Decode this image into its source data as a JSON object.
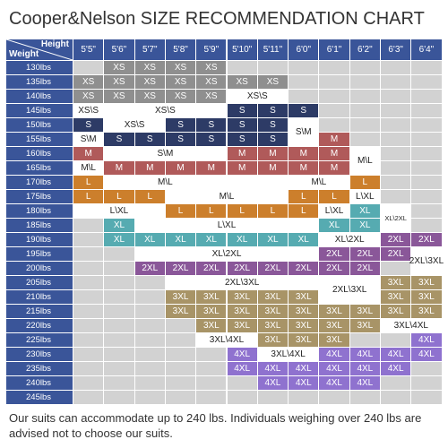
{
  "title": "Cooper&Nelson SIZE RECOMMENDATION CHART",
  "corner": {
    "height_label": "Height",
    "weight_label": "Weight"
  },
  "heights": [
    "5'5\"",
    "5'6\"",
    "5'7\"",
    "5'8\"",
    "5'9\"",
    "5'10\"",
    "5'11\"",
    "6'0\"",
    "6'1\"",
    "6'2\"",
    "6'3\"",
    "6'4\""
  ],
  "weights": [
    "130lbs",
    "135lbs",
    "140lbs",
    "145lbs",
    "150lbs",
    "155lbs",
    "160lbs",
    "165lbs",
    "170lbs",
    "175lbs",
    "180lbs",
    "185lbs",
    "190lbs",
    "195lbs",
    "200lbs",
    "205lbs",
    "210lbs",
    "215lbs",
    "220lbs",
    "225lbs",
    "230lbs",
    "235lbs",
    "240lbs",
    "245lbs"
  ],
  "colors": {
    "XS": "#8f8f8f",
    "S": "#2d3b66",
    "M": "#b05a5a",
    "L": "#cc7f2c",
    "XL": "#56abb1",
    "2XL": "#8a5799",
    "3XL": "#a89467",
    "4XL": "#8f72cf",
    "empty": "#d2d2d2",
    "white": "#ffffff",
    "header": "#3a5599"
  },
  "sizes": [
    [
      "",
      "XS",
      "XS",
      "XS",
      "XS",
      "",
      "",
      "",
      "",
      "",
      "",
      ""
    ],
    [
      "XS",
      "XS",
      "XS",
      "XS",
      "XS",
      "XS",
      "XS",
      "",
      "",
      "",
      "",
      ""
    ],
    [
      "XS",
      "XS",
      "XS",
      "XS",
      "XS",
      "",
      "",
      "",
      "",
      "",
      "",
      ""
    ],
    [
      "",
      "",
      "",
      "",
      "",
      "S",
      "S",
      "S",
      "",
      "",
      "",
      ""
    ],
    [
      "S",
      "",
      "",
      "S",
      "S",
      "S",
      "S",
      "",
      "",
      "",
      "",
      ""
    ],
    [
      "",
      "S",
      "S",
      "S",
      "S",
      "S",
      "S",
      "",
      "M",
      "",
      "",
      ""
    ],
    [
      "M",
      "",
      "",
      "",
      "",
      "M",
      "M",
      "M",
      "M",
      "",
      "",
      ""
    ],
    [
      "",
      "M",
      "M",
      "M",
      "M",
      "M",
      "M",
      "M",
      "M",
      "",
      "",
      ""
    ],
    [
      "L",
      "",
      "",
      "",
      "",
      "",
      "",
      "",
      "",
      "L",
      "",
      ""
    ],
    [
      "L",
      "L",
      "L",
      "",
      "",
      "",
      "",
      "L",
      "L",
      "",
      "",
      ""
    ],
    [
      "",
      "",
      "",
      "L",
      "L",
      "L",
      "L",
      "L",
      "",
      "XL",
      "",
      ""
    ],
    [
      "",
      "XL",
      "",
      "",
      "",
      "",
      "",
      "",
      "XL",
      "XL",
      "",
      ""
    ],
    [
      "",
      "XL",
      "XL",
      "XL",
      "XL",
      "XL",
      "XL",
      "XL",
      "",
      "",
      "2XL",
      "2XL"
    ],
    [
      "",
      "",
      "",
      "",
      "",
      "",
      "",
      "",
      "2XL",
      "2XL",
      "2XL",
      ""
    ],
    [
      "",
      "",
      "2XL",
      "2XL",
      "2XL",
      "2XL",
      "2XL",
      "2XL",
      "2XL",
      "2XL",
      "",
      ""
    ],
    [
      "",
      "",
      "",
      "",
      "",
      "",
      "",
      "",
      "",
      "",
      "3XL",
      "3XL"
    ],
    [
      "",
      "",
      "",
      "3XL",
      "3XL",
      "3XL",
      "3XL",
      "3XL",
      "",
      "",
      "3XL",
      "3XL"
    ],
    [
      "",
      "",
      "",
      "3XL",
      "3XL",
      "3XL",
      "3XL",
      "3XL",
      "3XL",
      "3XL",
      "3XL",
      "3XL"
    ],
    [
      "",
      "",
      "",
      "",
      "3XL",
      "3XL",
      "3XL",
      "3XL",
      "3XL",
      "3XL",
      "",
      ""
    ],
    [
      "",
      "",
      "",
      "",
      "",
      "",
      "3XL",
      "3XL",
      "3XL",
      "",
      "",
      "4XL"
    ],
    [
      "",
      "",
      "",
      "",
      "",
      "4XL",
      "",
      "",
      "4XL",
      "4XL",
      "4XL",
      "4XL"
    ],
    [
      "",
      "",
      "",
      "",
      "",
      "4XL",
      "4XL",
      "4XL",
      "4XL",
      "4XL",
      "4XL",
      ""
    ],
    [
      "",
      "",
      "",
      "",
      "",
      "",
      "4XL",
      "4XL",
      "4XL",
      "4XL",
      "",
      ""
    ],
    [
      "",
      "",
      "",
      "",
      "",
      "",
      "",
      "",
      "",
      "",
      "",
      ""
    ]
  ],
  "white_cells": [
    [
      3,
      0
    ],
    [
      3,
      1
    ],
    [
      3,
      2
    ],
    [
      3,
      3
    ],
    [
      3,
      4
    ],
    [
      2,
      5
    ],
    [
      2,
      6
    ],
    [
      4,
      1
    ],
    [
      4,
      2
    ],
    [
      5,
      0
    ],
    [
      4,
      7
    ],
    [
      5,
      7
    ],
    [
      6,
      1
    ],
    [
      6,
      2
    ],
    [
      6,
      3
    ],
    [
      6,
      4
    ],
    [
      7,
      0
    ],
    [
      6,
      9
    ],
    [
      7,
      9
    ],
    [
      8,
      1
    ],
    [
      8,
      2
    ],
    [
      8,
      3
    ],
    [
      8,
      4
    ],
    [
      8,
      5
    ],
    [
      8,
      6
    ],
    [
      8,
      7
    ],
    [
      8,
      8
    ],
    [
      9,
      9
    ],
    [
      9,
      3
    ],
    [
      9,
      4
    ],
    [
      9,
      5
    ],
    [
      9,
      6
    ],
    [
      10,
      0
    ],
    [
      10,
      1
    ],
    [
      10,
      2
    ],
    [
      10,
      8
    ],
    [
      11,
      2
    ],
    [
      11,
      3
    ],
    [
      11,
      4
    ],
    [
      11,
      5
    ],
    [
      11,
      6
    ],
    [
      11,
      7
    ],
    [
      10,
      10
    ],
    [
      11,
      10
    ],
    [
      12,
      8
    ],
    [
      12,
      9
    ],
    [
      13,
      2
    ],
    [
      13,
      3
    ],
    [
      13,
      4
    ],
    [
      13,
      5
    ],
    [
      13,
      6
    ],
    [
      13,
      7
    ],
    [
      14,
      11
    ],
    [
      13,
      11
    ],
    [
      15,
      3
    ],
    [
      15,
      4
    ],
    [
      15,
      5
    ],
    [
      15,
      6
    ],
    [
      15,
      7
    ],
    [
      15,
      8
    ],
    [
      15,
      9
    ],
    [
      16,
      8
    ],
    [
      16,
      9
    ],
    [
      18,
      10
    ],
    [
      18,
      11
    ],
    [
      19,
      4
    ],
    [
      19,
      5
    ],
    [
      20,
      6
    ],
    [
      20,
      7
    ]
  ],
  "spans": [
    {
      "row": 3,
      "c0": 0,
      "c1": 0,
      "text": "XS\\S"
    },
    {
      "row": 3,
      "c0": 1,
      "c1": 4,
      "text": "XS\\S"
    },
    {
      "row": 2,
      "c0": 5,
      "c1": 6,
      "text": "XS\\S"
    },
    {
      "row": 4,
      "c0": 1,
      "c1": 2,
      "text": "XS\\S"
    },
    {
      "row": 5,
      "c0": 0,
      "c1": 0,
      "text": "S\\M"
    },
    {
      "row": 4,
      "c0": 7,
      "c1": 7,
      "text": "S\\M",
      "rspan": 2
    },
    {
      "row": 6,
      "c0": 1,
      "c1": 4,
      "text": "S\\M"
    },
    {
      "row": 7,
      "c0": 0,
      "c1": 0,
      "text": "M\\L"
    },
    {
      "row": 6,
      "c0": 9,
      "c1": 9,
      "text": "M\\L",
      "rspan": 2
    },
    {
      "row": 8,
      "c0": 1,
      "c1": 4,
      "text": "M\\L"
    },
    {
      "row": 8,
      "c0": 7,
      "c1": 8,
      "text": "M\\L"
    },
    {
      "row": 9,
      "c0": 3,
      "c1": 6,
      "text": "M\\L"
    },
    {
      "row": 9,
      "c0": 9,
      "c1": 9,
      "text": "L\\XL"
    },
    {
      "row": 10,
      "c0": 0,
      "c1": 2,
      "text": "L\\XL"
    },
    {
      "row": 10,
      "c0": 8,
      "c1": 8,
      "text": "L\\XL"
    },
    {
      "row": 11,
      "c0": 2,
      "c1": 7,
      "text": "L\\XL"
    },
    {
      "row": 10,
      "c0": 10,
      "c1": 10,
      "text": "XL\\2XL",
      "rspan": 2,
      "small": true
    },
    {
      "row": 12,
      "c0": 8,
      "c1": 9,
      "text": "XL\\2XL"
    },
    {
      "row": 13,
      "c0": 2,
      "c1": 7,
      "text": "XL\\2XL"
    },
    {
      "row": 13,
      "c0": 11,
      "c1": 11,
      "text": "2XL\\3XL",
      "rspan": 2
    },
    {
      "row": 15,
      "c0": 3,
      "c1": 7,
      "text": "2XL\\3XL"
    },
    {
      "row": 15,
      "c0": 8,
      "c1": 9,
      "text": "2XL\\3XL",
      "rspan": 2
    },
    {
      "row": 18,
      "c0": 10,
      "c1": 11,
      "text": "3XL\\4XL"
    },
    {
      "row": 19,
      "c0": 4,
      "c1": 5,
      "text": "3XL\\4XL"
    },
    {
      "row": 20,
      "c0": 6,
      "c1": 7,
      "text": "3XL\\4XL"
    }
  ],
  "note": "Our suits can accommodate up to 240 lbs. Individuals weighing over 240 lbs are advised not to choose our suits."
}
